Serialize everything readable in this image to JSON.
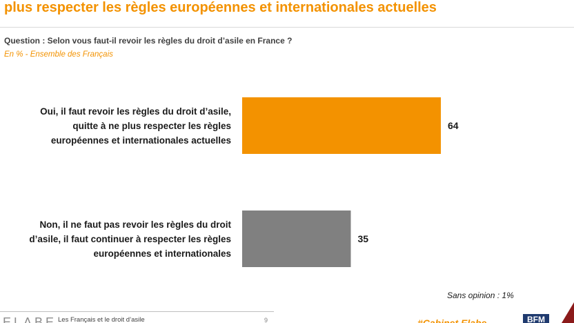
{
  "header": {
    "title": "plus respecter les règles européennes et internationales actuelles",
    "question": "Question : Selon vous faut-il revoir les règles du droit d’asile en France ?",
    "subtitle": "En % - Ensemble des Français"
  },
  "chart_data": {
    "type": "bar",
    "orientation": "horizontal",
    "categories": [
      [
        "Oui, il faut revoir les règles du droit d’asile,",
        "quitte à ne plus respecter les règles",
        "européennes et internationales actuelles"
      ],
      [
        "Non, il ne faut pas revoir les règles du droit",
        "d’asile, il faut continuer à respecter les règles",
        "européennes et internationales"
      ]
    ],
    "values": [
      64,
      35
    ],
    "value_labels": [
      "64",
      "35"
    ],
    "colors": [
      "#f39200",
      "#808080"
    ],
    "xlim": [
      0,
      100
    ],
    "grid": false
  },
  "note": "Sans opinion : 1%",
  "footer": {
    "logo_left": "ELABE",
    "text": "Les Français et le droit d’asile",
    "page": "9",
    "orange_text": "#Cabinet Elabe",
    "logo_right": "BFM"
  }
}
